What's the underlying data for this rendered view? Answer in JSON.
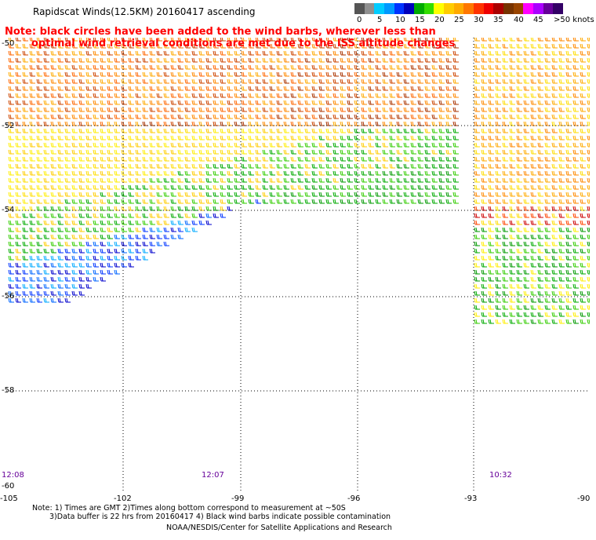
{
  "title": "Rapidscat Winds(12.5KM) 20160417 ascending",
  "note": {
    "line1": "Note: black circles have been added to the wind barbs, wherever less than",
    "line2": "optimal wind retrieval conditions are met due to the ISS altitude changes"
  },
  "legend": {
    "ticks": [
      "0",
      "5",
      "10",
      "15",
      "20",
      "25",
      "30",
      "35",
      "40",
      "45",
      ">50 knots"
    ],
    "colors": [
      "#555555",
      "#909090",
      "#00ccff",
      "#0099ff",
      "#0033ff",
      "#0000bb",
      "#00aa00",
      "#33dd00",
      "#ffff00",
      "#ffcc00",
      "#ffaa00",
      "#ff7700",
      "#ff3300",
      "#ee0000",
      "#aa0000",
      "#773300",
      "#994400",
      "#ff00ff",
      "#aa00ff",
      "#660099",
      "#330066"
    ]
  },
  "map": {
    "lon_ticks": [
      "-105",
      "-102",
      "-99",
      "-96",
      "-93",
      "-90"
    ],
    "lat_ticks": [
      "-50",
      "-52",
      "-54",
      "-56",
      "-58",
      "-60"
    ],
    "times": [
      "12:08",
      "12:07",
      "10:32"
    ]
  },
  "footer": {
    "line1": "Note: 1) Times are GMT 2)Times along bottom correspond to measurement at ~50S",
    "line2": "3)Data buffer is 22 hrs from 20160417 4) Black wind barbs indicate possible contamination",
    "line3": "NOAA/NESDIS/Center for Satellite Applications and Research"
  }
}
